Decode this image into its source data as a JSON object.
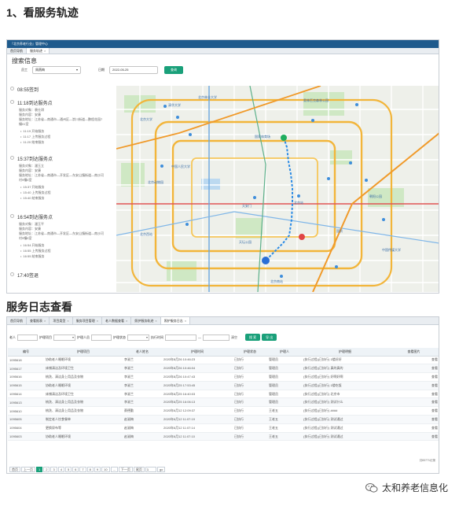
{
  "section1": {
    "heading": "1、看服务轨迹"
  },
  "section2": {
    "heading": "服务日志查看"
  },
  "app1": {
    "window_title": "『北京养老行业』管理中心",
    "tabs": [
      {
        "label": "首页导航"
      },
      {
        "label": "服务轨迹"
      }
    ],
    "search": {
      "title": "搜索信息",
      "staff_label": "员工",
      "staff_value": "周燕梅",
      "date_label": "日期",
      "date_value": "2022-05-25",
      "query_button": "查询"
    },
    "timeline": [
      {
        "time": "08:55",
        "title": "08:55签到",
        "lines": [],
        "bullets": []
      },
      {
        "time": "11:18",
        "title": "11:18到达服务点",
        "lines": [
          "服务对象：裴仕琪",
          "服务内容：安康",
          "服务地址：江苏省—南通市—通州区—崇川街道—鹏程花园7",
          "幢01室"
        ],
        "bullets": [
          "11:19 开始服务",
          "11:17 上传服务过程",
          "11:20 结束服务"
        ]
      },
      {
        "time": "15:37",
        "title": "15:37到达服务点",
        "lines": [
          "服务对象：潘玉立",
          "服务内容：安康",
          "服务地址：江苏省—南通市—开发区—东安山镇街道—南沙河",
          "村9幢6室"
        ],
        "bullets": [
          "15:37 开始服务",
          "15:40 上传服务过程",
          "15:40 结束服务"
        ]
      },
      {
        "time": "16:54",
        "title": "16:54到达服务点",
        "lines": [
          "服务对象：潘玉平",
          "服务内容：安康",
          "服务地址：江苏省—南通市—开发区—东安山镇街道—南沙河",
          "村9幢6室"
        ],
        "bullets": [
          "16:54 开始服务",
          "16:55 上传服务过程",
          "16:55 结束服务"
        ]
      },
      {
        "time": "17:40",
        "title": "17:40签退",
        "lines": [],
        "bullets": []
      }
    ],
    "map_labels": [
      "清华大学",
      "北京大学",
      "中国人民大学",
      "北京动物园",
      "北京西站",
      "天安门",
      "北京站",
      "北京南站",
      "朝阳公园",
      "国家体育场",
      "奥林匹克森林公园",
      "北京林业大学",
      "天坛公园",
      "国贸",
      "中国传媒大学"
    ]
  },
  "app2": {
    "tabs": [
      {
        "label": "首页导航"
      },
      {
        "label": "查看报表"
      },
      {
        "label": "项目类型"
      },
      {
        "label": "服务项目管理"
      },
      {
        "label": "老人数据查看"
      },
      {
        "label": "照护服务轨迹"
      },
      {
        "label": "照护服务日志"
      }
    ],
    "filters": {
      "elder_label": "老人",
      "project_label": "护理项目",
      "caregiver_label": "护理人员",
      "status_label": "护理状态",
      "exec_time_label": "执行时间",
      "to_label": "—",
      "clear_label": "清空",
      "search_button": "搜 索",
      "export_button": "导 出"
    },
    "table": {
      "headers": [
        "编号",
        "护理项目",
        "老人姓名",
        "护理时间",
        "护理状态",
        "护理人",
        "护理明细",
        "查看图片"
      ],
      "rows": [
        [
          "1095618",
          "协助老人睡眠环境",
          "李淑兰",
          "2020年8月26 10:46:23",
          "已执行",
          "管理员",
          "(执行过程)(已执行) 1楼好好",
          "查看"
        ],
        [
          "1095617",
          "床铺清洁及环境卫生",
          "李淑兰",
          "2020年8月26 10:46:04",
          "已执行",
          "管理员",
          "(执行过程)(已执行) 真的真的",
          "查看"
        ],
        [
          "1095616",
          "梳洗、清洁身上用品及衣物",
          "李淑兰",
          "2020年8月26 10:47:43",
          "已执行",
          "管理员",
          "(执行过程)(已执行) 好啊好啊",
          "查看"
        ],
        [
          "1095615",
          "协助老人睡眠环境",
          "李淑兰",
          "2020年8月25 17:53:45",
          "已执行",
          "管理员",
          "(执行过程)(已执行) 1楼吃饭",
          "查看"
        ],
        [
          "1095614",
          "床铺清洁及环境卫生",
          "李淑兰",
          "2020年8月25 16:40:03",
          "已执行",
          "管理员",
          "(执行过程)(已执行) 北京市",
          "查看"
        ],
        [
          "1095613",
          "梳洗、清洁身上用品及衣物",
          "李淑兰",
          "2020年8月25 16:06:13",
          "已执行",
          "管理员",
          "(执行过程)(已执行) 测试什么",
          "查看"
        ],
        [
          "1095610",
          "梳洗、清洁身上用品及衣物",
          "蔡德勤",
          "2020年6月12 12:09:37",
          "已执行",
          "王老五",
          "(执行过程)(已执行) ####",
          "查看"
        ],
        [
          "1095605",
          "制定老人饮食餐单",
          "赵淑梅",
          "2020年6月12 11:07:19",
          "已执行",
          "王老五",
          "(执行过程)(已执行) 测试通过",
          "查看"
        ],
        [
          "1095604",
          "更换尿布等",
          "赵淑梅",
          "2020年6月12 11:07:14",
          "已执行",
          "王老五",
          "(执行过程)(已执行) 测试通过",
          "查看"
        ],
        [
          "1095603",
          "协助老人睡眠环境",
          "赵淑梅",
          "2020年6月12 11:07:10",
          "已执行",
          "王老五",
          "(执行过程)(已执行) 测试通过",
          "查看"
        ]
      ]
    },
    "total_text": "共83771记录",
    "pager": {
      "first": "首页",
      "prev": "上一页",
      "pages": [
        "1",
        "2",
        "3",
        "4",
        "5",
        "6",
        "7",
        "8",
        "9",
        "10",
        "..."
      ],
      "next": "下一页",
      "last": "尾页",
      "goto_value": "1",
      "go_button": "go"
    }
  },
  "watermark": {
    "text": "太和养老信息化"
  }
}
